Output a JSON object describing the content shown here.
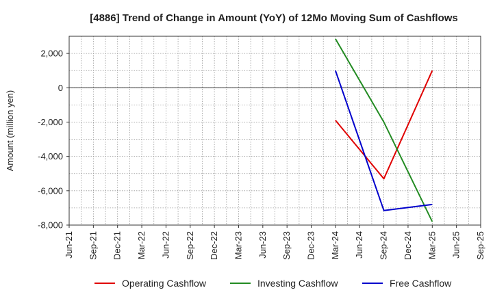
{
  "chart_data": {
    "type": "line",
    "title": "[4886]  Trend of Change in Amount (YoY) of 12Mo Moving Sum of Cashflows",
    "xlabel": "",
    "ylabel": "Amount (million yen)",
    "ylim": [
      -8000,
      3000
    ],
    "yticks": [
      2000,
      0,
      -2000,
      -4000,
      -6000,
      -8000
    ],
    "ytick_labels": [
      "2,000",
      "0",
      "-2,000",
      "-4,000",
      "-6,000",
      "-8,000"
    ],
    "categories": [
      "Jun-21",
      "Sep-21",
      "Dec-21",
      "Mar-22",
      "Jun-22",
      "Sep-22",
      "Dec-22",
      "Mar-23",
      "Jun-23",
      "Sep-23",
      "Dec-23",
      "Mar-24",
      "Jun-24",
      "Sep-24",
      "Dec-24",
      "Mar-25",
      "Jun-25",
      "Sep-25"
    ],
    "grid": true,
    "legend_position": "bottom",
    "series": [
      {
        "name": "Operating Cashflow",
        "color": "#e00000",
        "x": [
          "Mar-24",
          "Sep-24",
          "Mar-25"
        ],
        "values": [
          -1900,
          -5300,
          1000
        ]
      },
      {
        "name": "Investing Cashflow",
        "color": "#228b22",
        "x": [
          "Mar-24",
          "Sep-24",
          "Mar-25"
        ],
        "values": [
          2850,
          -2000,
          -7800
        ]
      },
      {
        "name": "Free Cashflow",
        "color": "#0000cc",
        "x": [
          "Mar-24",
          "Sep-24",
          "Mar-25"
        ],
        "values": [
          1000,
          -7150,
          -6800
        ]
      }
    ]
  }
}
